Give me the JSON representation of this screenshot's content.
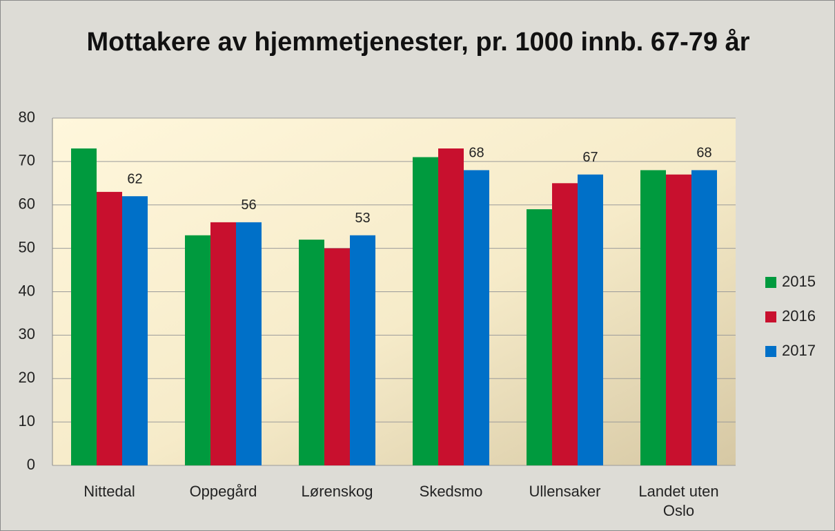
{
  "chart_data": {
    "type": "bar",
    "title": "Mottakere av hjemmetjenester, pr. 1000 innb. 67-79 år",
    "categories": [
      "Nittedal",
      "Oppegård",
      "Lørenskog",
      "Skedsmo",
      "Ullensaker",
      "Landet uten Oslo"
    ],
    "series": [
      {
        "name": "2015",
        "color": "#009a3e",
        "values": [
          73,
          53,
          52,
          71,
          59,
          68
        ]
      },
      {
        "name": "2016",
        "color": "#c8102e",
        "values": [
          63,
          56,
          50,
          73,
          65,
          67
        ]
      },
      {
        "name": "2017",
        "color": "#0070c8",
        "values": [
          62,
          56,
          53,
          68,
          67,
          68
        ],
        "data_labels": true
      }
    ],
    "ylim": [
      0,
      80
    ],
    "yticks": [
      0,
      10,
      20,
      30,
      40,
      50,
      60,
      70,
      80
    ],
    "grid": true,
    "legend": "right"
  }
}
